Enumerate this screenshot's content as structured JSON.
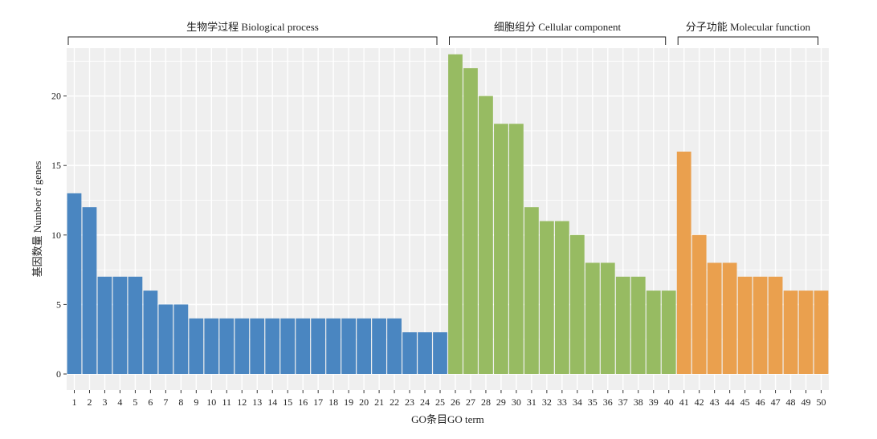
{
  "chart_data": {
    "type": "bar",
    "xlabel": "GO条目GO term",
    "ylabel": "基因数量 Number of genes",
    "ylim": [
      0,
      23.5
    ],
    "yticks": [
      0,
      5,
      10,
      15,
      20
    ],
    "grid": true,
    "categories": [
      "1",
      "2",
      "3",
      "4",
      "5",
      "6",
      "7",
      "8",
      "9",
      "10",
      "11",
      "12",
      "13",
      "14",
      "15",
      "16",
      "17",
      "18",
      "19",
      "20",
      "21",
      "22",
      "23",
      "24",
      "25",
      "26",
      "27",
      "28",
      "29",
      "30",
      "31",
      "32",
      "33",
      "34",
      "35",
      "36",
      "37",
      "38",
      "39",
      "40",
      "41",
      "42",
      "43",
      "44",
      "45",
      "46",
      "47",
      "48",
      "49",
      "50"
    ],
    "groups": [
      {
        "name": "生物学过程 Biological process",
        "color": "#4a86c1",
        "start": 1,
        "end": 25,
        "values": [
          13,
          12,
          7,
          7,
          7,
          6,
          5,
          5,
          4,
          4,
          4,
          4,
          4,
          4,
          4,
          4,
          4,
          4,
          4,
          4,
          4,
          4,
          3,
          3,
          3
        ]
      },
      {
        "name": "细胞组分 Cellular component",
        "color": "#97bb62",
        "start": 26,
        "end": 40,
        "values": [
          23,
          22,
          20,
          18,
          18,
          12,
          11,
          11,
          10,
          8,
          8,
          7,
          7,
          6,
          6
        ]
      },
      {
        "name": "分子功能 Molecular function",
        "color": "#eaa04e",
        "start": 41,
        "end": 50,
        "values": [
          16,
          10,
          8,
          8,
          7,
          7,
          7,
          6,
          6,
          6
        ]
      }
    ]
  }
}
